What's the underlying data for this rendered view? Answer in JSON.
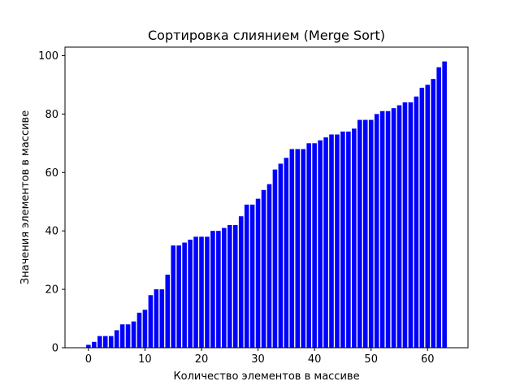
{
  "chart_data": {
    "type": "bar",
    "title": "Сортировка слиянием (Merge Sort)",
    "xlabel": "Количество элементов в массиве",
    "ylabel": "Значения элементов в массиве",
    "x": [
      0,
      1,
      2,
      3,
      4,
      5,
      6,
      7,
      8,
      9,
      10,
      11,
      12,
      13,
      14,
      15,
      16,
      17,
      18,
      19,
      20,
      21,
      22,
      23,
      24,
      25,
      26,
      27,
      28,
      29,
      30,
      31,
      32,
      33,
      34,
      35,
      36,
      37,
      38,
      39,
      40,
      41,
      42,
      43,
      44,
      45,
      46,
      47,
      48,
      49,
      50,
      51,
      52,
      53,
      54,
      55,
      56,
      57,
      58,
      59,
      60,
      61,
      62,
      63
    ],
    "values": [
      1,
      2,
      4,
      4,
      4,
      6,
      8,
      8,
      9,
      12,
      13,
      18,
      20,
      20,
      25,
      35,
      35,
      36,
      37,
      38,
      38,
      38,
      40,
      40,
      41,
      42,
      42,
      45,
      49,
      49,
      51,
      54,
      56,
      61,
      63,
      65,
      68,
      68,
      68,
      70,
      70,
      71,
      72,
      73,
      73,
      74,
      74,
      75,
      78,
      78,
      78,
      80,
      81,
      81,
      82,
      83,
      84,
      84,
      86,
      89,
      90,
      92,
      96,
      98
    ],
    "xlim": [
      -4.15,
      67.15
    ],
    "ylim": [
      0,
      102.9
    ],
    "xticks": [
      0,
      10,
      20,
      30,
      40,
      50,
      60
    ],
    "yticks": [
      0,
      20,
      40,
      60,
      80,
      100
    ],
    "bar_color": "#0000ff",
    "grid": false
  }
}
